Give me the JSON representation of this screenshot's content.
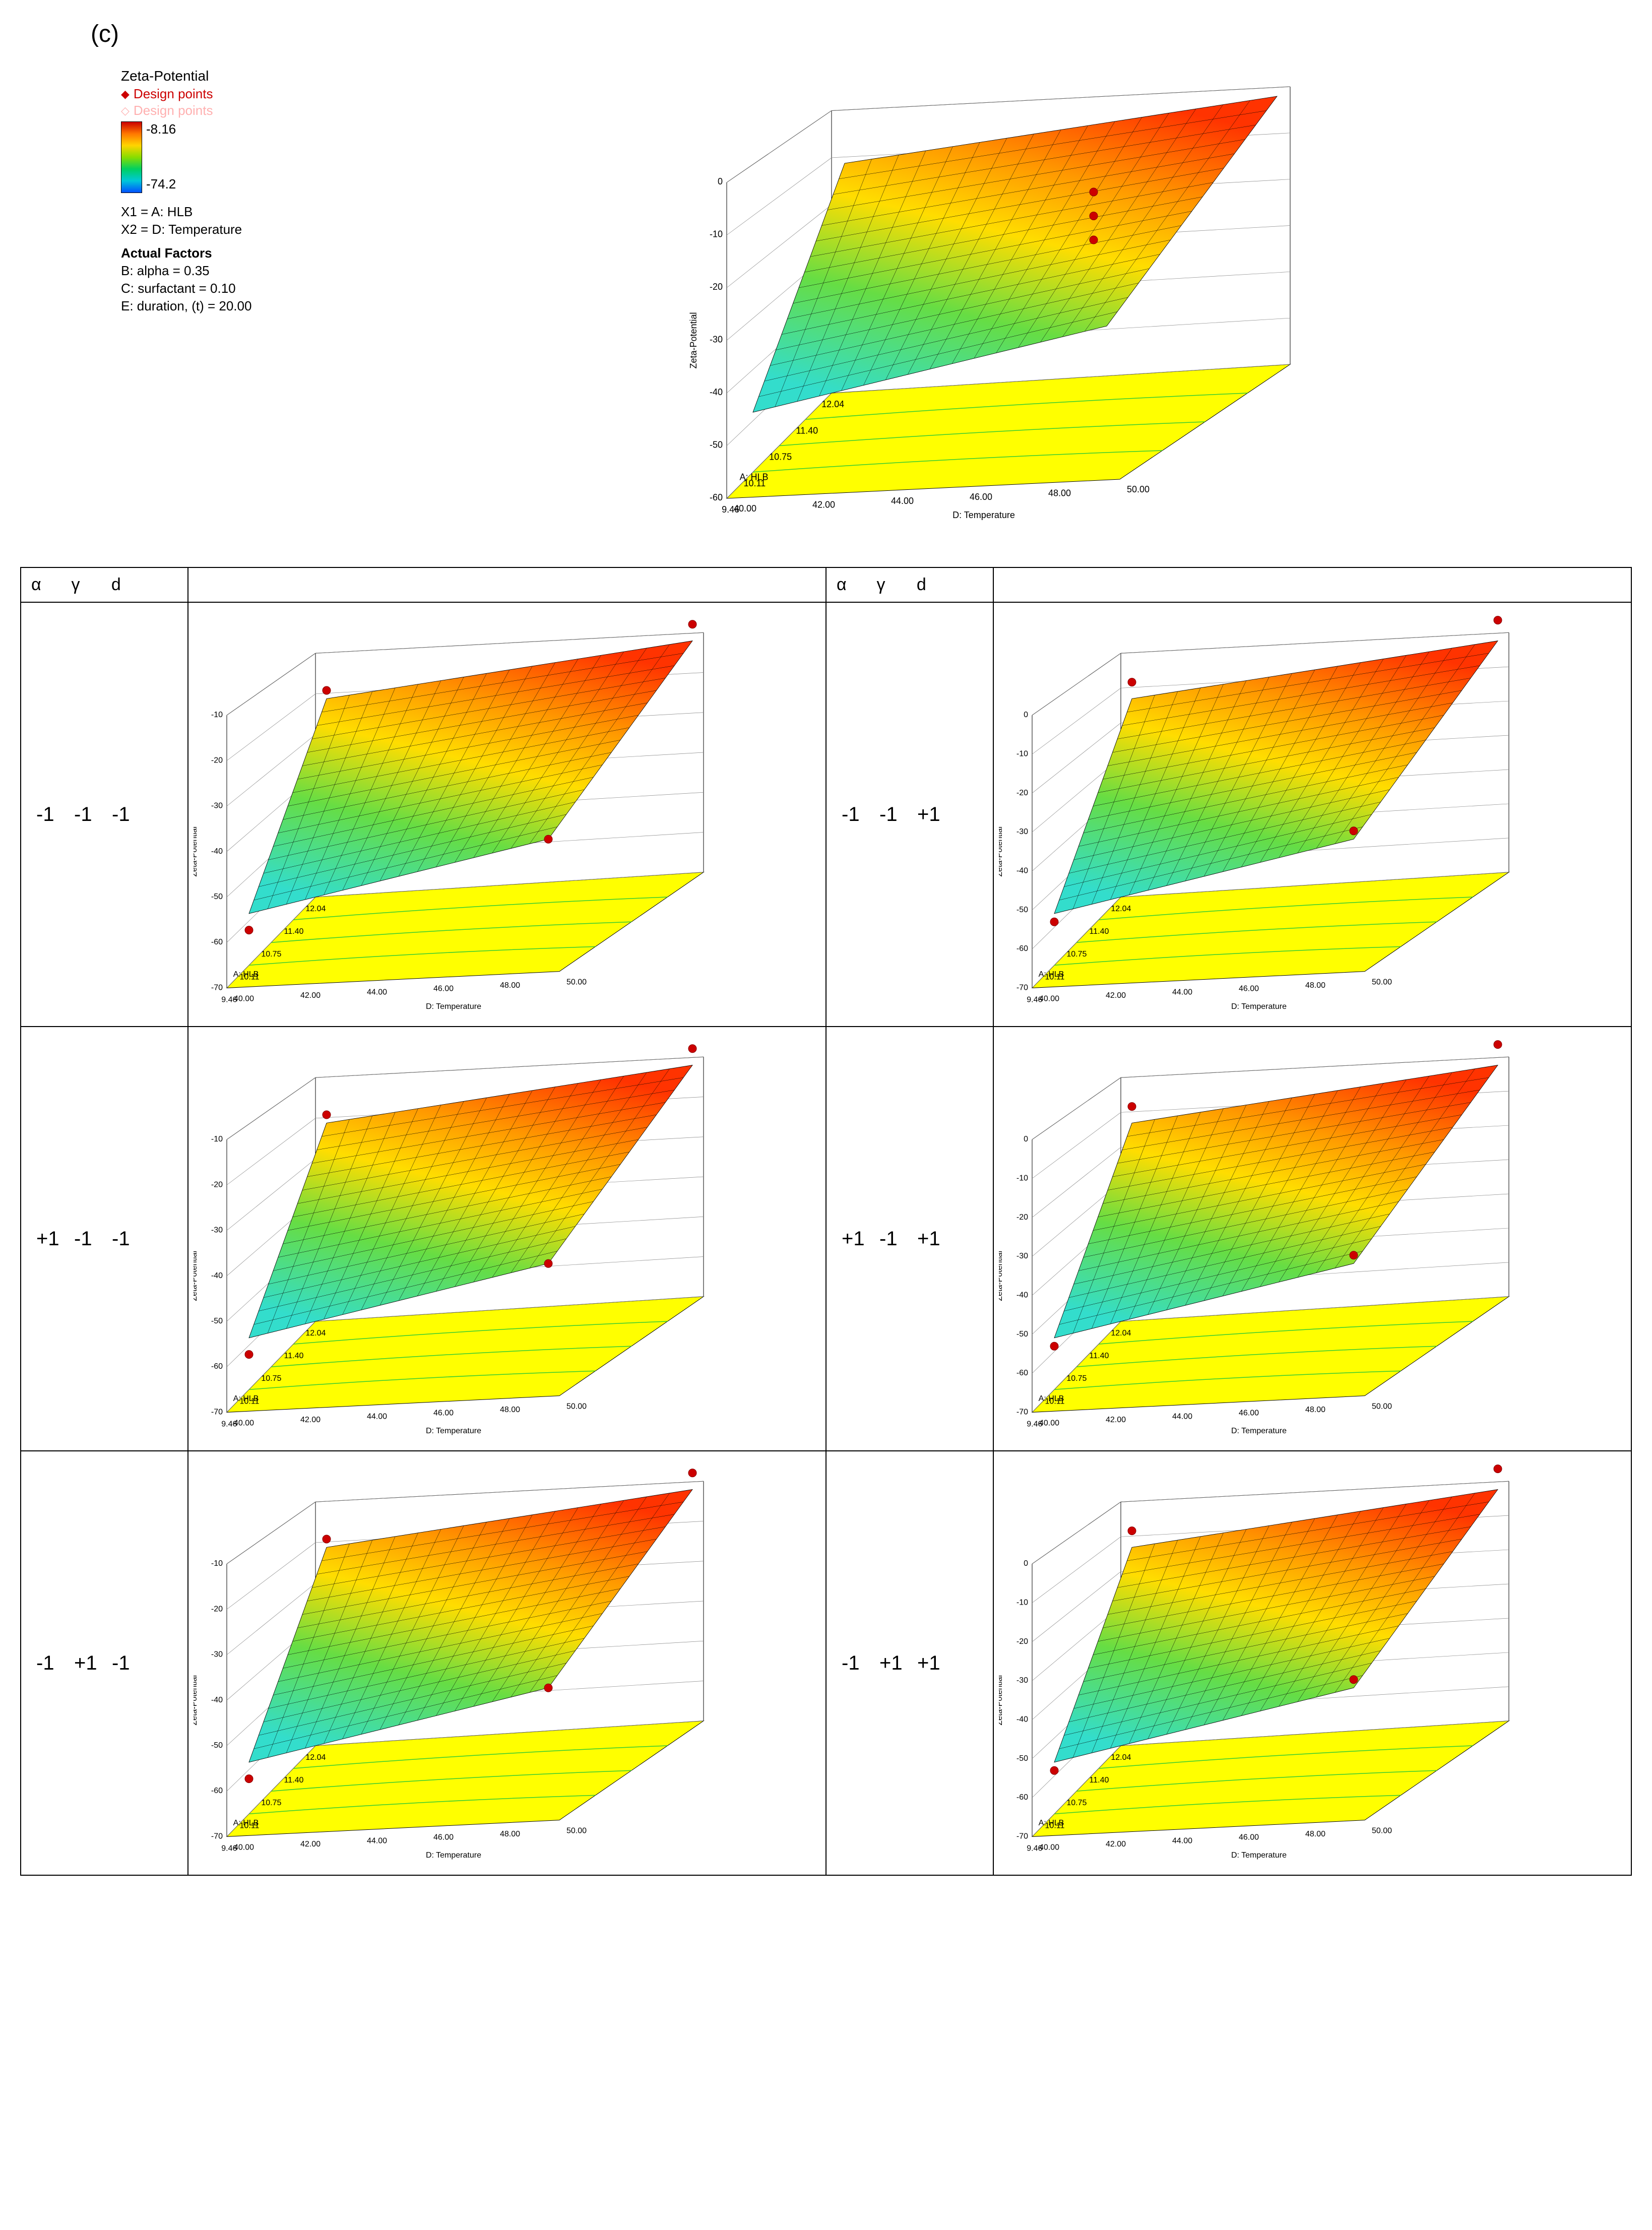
{
  "panel_label": "(c)",
  "legend": {
    "title": "Zeta-Potential",
    "design_points_red": "Design points",
    "design_points_pink": "Design points",
    "marker_red_color": "#cc0000",
    "marker_pink_color": "#ffb0b0",
    "high_value": "-8.16",
    "low_value": "-74.2",
    "gradient_colors": [
      "#cc0000",
      "#ff7700",
      "#ffd400",
      "#88dd00",
      "#00d060",
      "#00c8d8",
      "#0050ff"
    ]
  },
  "axes_info": {
    "x1": "X1 = A: HLB",
    "x2": "X2 = D: Temperature"
  },
  "actual_factors": {
    "title": "Actual Factors",
    "b": "B: alpha = 0.35",
    "c": "C: surfactant = 0.10",
    "e": "E: duration, (t) = 20.00"
  },
  "main_chart": {
    "z_label": "Zeta-Potential",
    "z_ticks": [
      "0",
      "-10",
      "-20",
      "-30",
      "-40",
      "-50",
      "-60"
    ],
    "x_label": "A: HLB",
    "x_ticks": [
      "12.04",
      "11.40",
      "10.75",
      "10.11",
      "9.46"
    ],
    "y_label": "D: Temperature",
    "y_ticks": [
      "40.00",
      "42.00",
      "44.00",
      "46.00",
      "48.00",
      "50.00"
    ],
    "base_color": "#ffff00",
    "contour_color": "#33cc33",
    "surface_top_color": "#ff3300",
    "surface_upper_color": "#ff9900",
    "surface_mid_color": "#ffdd00",
    "surface_lower_color": "#66dd44",
    "surface_bottom_color": "#33ddcc",
    "design_marker_color": "#cc0000"
  },
  "small_chart": {
    "z_label": "Zeta-Potential",
    "z_ticks": [
      "-10",
      "-20",
      "-30",
      "-40",
      "-50",
      "-60",
      "-70"
    ],
    "z_ticks_alt": [
      "0",
      "-10",
      "-20",
      "-30",
      "-40",
      "-50",
      "-60",
      "-70"
    ],
    "x_label": "A: HLB",
    "x_ticks": [
      "12.04",
      "11.40",
      "10.75",
      "10.11",
      "9.46"
    ],
    "y_label": "D: Temperature",
    "y_ticks": [
      "40.00",
      "42.00",
      "44.00",
      "46.00",
      "48.00",
      "50.00"
    ]
  },
  "table": {
    "headers": {
      "alpha": "α",
      "gamma": "γ",
      "d": "d"
    },
    "rows": [
      {
        "alpha": "-1",
        "gamma": "-1",
        "d": "-1",
        "alpha2": "-1",
        "gamma2": "-1",
        "d2": "+1"
      },
      {
        "alpha": "+1",
        "gamma": "-1",
        "d": "-1",
        "alpha2": "+1",
        "gamma2": "-1",
        "d2": "+1"
      },
      {
        "alpha": "-1",
        "gamma": "+1",
        "d": "-1",
        "alpha2": "-1",
        "gamma2": "+1",
        "d2": "+1"
      }
    ]
  },
  "colors": {
    "red": "#cc0000",
    "pink": "#ffb0b0",
    "black": "#000000",
    "yellow_base": "#ffff00",
    "contour": "#33cc33"
  }
}
